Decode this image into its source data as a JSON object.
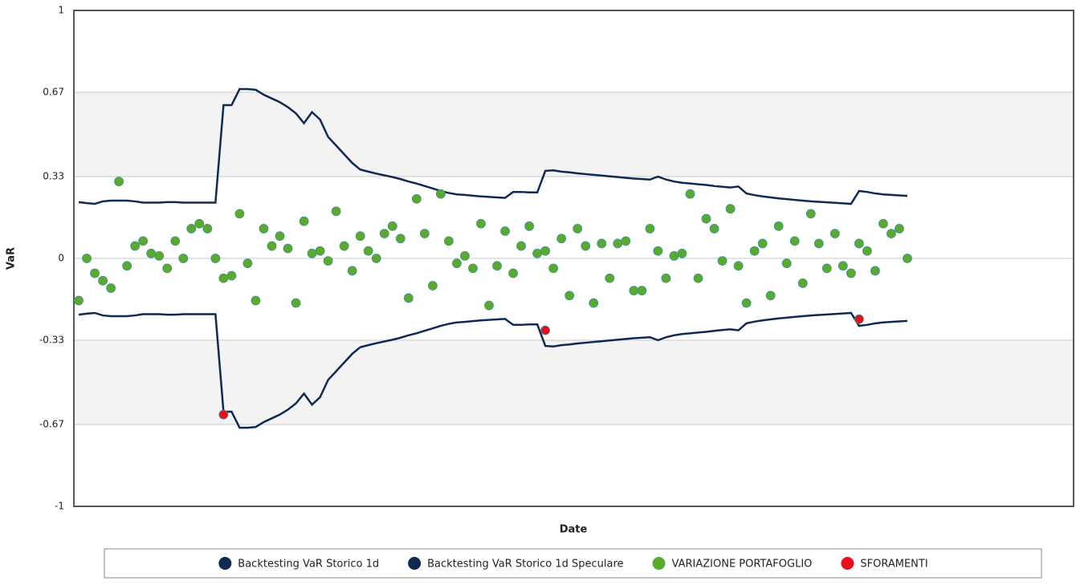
{
  "chart_data": {
    "type": "line",
    "x_title": "Date",
    "y_title": "VaR",
    "ylim": [
      -1,
      1
    ],
    "yticks": [
      -1,
      -0.67,
      -0.33,
      0,
      0.33,
      0.67,
      1
    ],
    "grid": true,
    "banded": true,
    "legend": "bottom",
    "series": [
      {
        "name": "Backtesting VaR Storico 1d",
        "type": "line",
        "color": "#0f2a52",
        "values": [
          0.227,
          0.223,
          0.22,
          0.23,
          0.233,
          0.233,
          0.233,
          0.23,
          0.225,
          0.225,
          0.225,
          0.227,
          0.227,
          0.225,
          0.225,
          0.225,
          0.225,
          0.225,
          0.618,
          0.618,
          0.683,
          0.683,
          0.68,
          0.66,
          0.645,
          0.63,
          0.61,
          0.585,
          0.545,
          0.59,
          0.56,
          0.49,
          0.455,
          0.42,
          0.385,
          0.358,
          0.35,
          0.342,
          0.335,
          0.328,
          0.32,
          0.31,
          0.302,
          0.292,
          0.282,
          0.272,
          0.264,
          0.258,
          0.256,
          0.253,
          0.25,
          0.248,
          0.246,
          0.244,
          0.268,
          0.268,
          0.266,
          0.266,
          0.353,
          0.355,
          0.35,
          0.347,
          0.343,
          0.34,
          0.337,
          0.334,
          0.331,
          0.328,
          0.325,
          0.322,
          0.32,
          0.318,
          0.33,
          0.318,
          0.31,
          0.305,
          0.302,
          0.299,
          0.296,
          0.292,
          0.289,
          0.286,
          0.29,
          0.262,
          0.255,
          0.25,
          0.246,
          0.242,
          0.239,
          0.236,
          0.233,
          0.23,
          0.228,
          0.226,
          0.224,
          0.222,
          0.22,
          0.272,
          0.268,
          0.262,
          0.258,
          0.256,
          0.254,
          0.252
        ]
      },
      {
        "name": "Backtesting VaR Storico 1d Speculare",
        "type": "line",
        "color": "#0f2a52",
        "values": [
          -0.227,
          -0.223,
          -0.22,
          -0.23,
          -0.233,
          -0.233,
          -0.233,
          -0.23,
          -0.225,
          -0.225,
          -0.225,
          -0.227,
          -0.227,
          -0.225,
          -0.225,
          -0.225,
          -0.225,
          -0.225,
          -0.618,
          -0.618,
          -0.683,
          -0.683,
          -0.68,
          -0.66,
          -0.645,
          -0.63,
          -0.61,
          -0.585,
          -0.545,
          -0.59,
          -0.56,
          -0.49,
          -0.455,
          -0.42,
          -0.385,
          -0.358,
          -0.35,
          -0.342,
          -0.335,
          -0.328,
          -0.32,
          -0.31,
          -0.302,
          -0.292,
          -0.282,
          -0.272,
          -0.264,
          -0.258,
          -0.256,
          -0.253,
          -0.25,
          -0.248,
          -0.246,
          -0.244,
          -0.268,
          -0.268,
          -0.266,
          -0.266,
          -0.353,
          -0.355,
          -0.35,
          -0.347,
          -0.343,
          -0.34,
          -0.337,
          -0.334,
          -0.331,
          -0.328,
          -0.325,
          -0.322,
          -0.32,
          -0.318,
          -0.33,
          -0.318,
          -0.31,
          -0.305,
          -0.302,
          -0.299,
          -0.296,
          -0.292,
          -0.289,
          -0.286,
          -0.29,
          -0.262,
          -0.255,
          -0.25,
          -0.246,
          -0.242,
          -0.239,
          -0.236,
          -0.233,
          -0.23,
          -0.228,
          -0.226,
          -0.224,
          -0.222,
          -0.22,
          -0.272,
          -0.268,
          -0.262,
          -0.258,
          -0.256,
          -0.254,
          -0.252
        ]
      },
      {
        "name": "VARIAZIONE PORTAFOGLIO",
        "type": "scatter",
        "color": "#5aab2c",
        "values": [
          -0.17,
          0.0,
          -0.06,
          -0.09,
          -0.12,
          0.31,
          -0.03,
          0.05,
          0.07,
          0.02,
          0.01,
          -0.04,
          0.07,
          0.0,
          0.12,
          0.14,
          0.12,
          0.0,
          -0.08,
          -0.07,
          0.18,
          -0.02,
          -0.17,
          0.12,
          0.05,
          0.09,
          0.04,
          -0.18,
          0.15,
          0.02,
          0.03,
          -0.01,
          0.19,
          0.05,
          -0.05,
          0.09,
          0.03,
          0.0,
          0.1,
          0.13,
          0.08,
          -0.16,
          0.24,
          0.1,
          -0.11,
          0.26,
          0.07,
          -0.02,
          0.01,
          -0.04,
          0.14,
          -0.19,
          -0.03,
          0.11,
          -0.06,
          0.05,
          0.13,
          0.02,
          0.03,
          -0.04,
          0.08,
          -0.15,
          0.12,
          0.05,
          -0.18,
          0.06,
          -0.08,
          0.06,
          0.07,
          -0.13,
          -0.13,
          0.12,
          0.03,
          -0.08,
          0.01,
          0.02,
          0.26,
          -0.08,
          0.16,
          0.12,
          -0.01,
          0.2,
          -0.03,
          -0.18,
          0.03,
          0.06,
          -0.15,
          0.13,
          -0.02,
          0.07,
          -0.1,
          0.18,
          0.06,
          -0.04,
          0.1,
          -0.03,
          -0.06,
          0.06,
          0.03,
          -0.05,
          0.14,
          0.1,
          0.12,
          0.0
        ]
      },
      {
        "name": "SFORAMENTI",
        "type": "scatter",
        "color": "#e8101a",
        "values": [
          null,
          null,
          null,
          null,
          null,
          null,
          null,
          null,
          null,
          null,
          null,
          null,
          null,
          null,
          null,
          null,
          null,
          null,
          -0.63,
          null,
          null,
          null,
          null,
          null,
          null,
          null,
          null,
          null,
          null,
          null,
          null,
          null,
          null,
          null,
          null,
          null,
          null,
          null,
          null,
          null,
          null,
          null,
          null,
          null,
          null,
          null,
          null,
          null,
          null,
          null,
          null,
          null,
          null,
          null,
          null,
          null,
          null,
          null,
          -0.29,
          null,
          null,
          null,
          null,
          null,
          null,
          null,
          null,
          null,
          null,
          null,
          null,
          null,
          null,
          null,
          null,
          null,
          null,
          null,
          null,
          null,
          null,
          null,
          null,
          null,
          null,
          null,
          null,
          null,
          null,
          null,
          null,
          null,
          null,
          null,
          null,
          null,
          null,
          -0.245,
          null,
          null,
          null,
          null,
          null,
          null
        ]
      }
    ]
  }
}
